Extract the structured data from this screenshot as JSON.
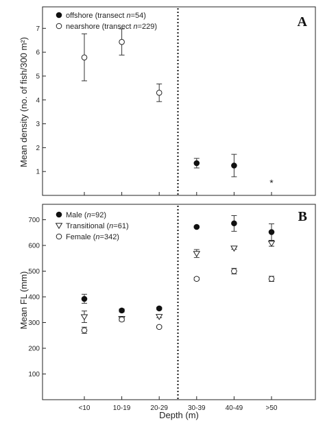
{
  "chart_data": [
    {
      "type": "scatter",
      "panel_label": "A",
      "ylabel": "Mean density (no. of fish/300 m²)",
      "ylim": [
        0,
        7.9
      ],
      "yticks": [
        1,
        2,
        3,
        4,
        5,
        6,
        7
      ],
      "categories": [
        "<10",
        "10-19",
        "20-29",
        "30-39",
        "40-49",
        ">50"
      ],
      "divider_after_category": 2,
      "legend_position": "top-left",
      "series": [
        {
          "name_parts": [
            "offshore (transect ",
            "n",
            "=54)"
          ],
          "marker": "filled-circle",
          "points": [
            {
              "x": "30-39",
              "y": 1.35,
              "err_low": 1.15,
              "err_high": 1.55
            },
            {
              "x": "40-49",
              "y": 1.25,
              "err_low": 0.78,
              "err_high": 1.72
            }
          ]
        },
        {
          "name_parts": [
            "nearshore (transect ",
            "n",
            "=229)"
          ],
          "marker": "open-circle",
          "points": [
            {
              "x": "<10",
              "y": 5.78,
              "err_low": 4.8,
              "err_high": 6.77
            },
            {
              "x": "10-19",
              "y": 6.43,
              "err_low": 5.88,
              "err_high": 6.98
            },
            {
              "x": "20-29",
              "y": 4.3,
              "err_low": 3.93,
              "err_high": 4.67
            }
          ]
        }
      ],
      "annotations": [
        {
          "text": "*",
          "x": ">50",
          "y": 0.62
        }
      ]
    },
    {
      "type": "scatter",
      "panel_label": "B",
      "xlabel": "Depth (m)",
      "ylabel": "Mean FL (mm)",
      "ylim": [
        0,
        760
      ],
      "yticks": [
        100,
        200,
        300,
        400,
        500,
        600,
        700
      ],
      "categories": [
        "<10",
        "10-19",
        "20-29",
        "30-39",
        "40-49",
        ">50"
      ],
      "divider_after_category": 2,
      "legend_position": "top-left",
      "series": [
        {
          "name_parts": [
            "Male (",
            "n",
            "=92)"
          ],
          "marker": "filled-circle",
          "points": [
            {
              "x": "<10",
              "y": 392,
              "err_low": 375,
              "err_high": 410
            },
            {
              "x": "10-19",
              "y": 347,
              "err_low": 341,
              "err_high": 353
            },
            {
              "x": "20-29",
              "y": 355,
              "err_low": 350,
              "err_high": 360
            },
            {
              "x": "30-39",
              "y": 672,
              "err_low": 668,
              "err_high": 676
            },
            {
              "x": "40-49",
              "y": 686,
              "err_low": 655,
              "err_high": 716
            },
            {
              "x": "40-49_offset",
              "y": 0,
              "err_low": 0,
              "err_high": 0
            },
            {
              "x": ">50",
              "y": 652,
              "err_low": 620,
              "err_high": 684
            }
          ]
        },
        {
          "name_parts": [
            "Transitional (",
            "n",
            "=61)"
          ],
          "marker": "open-triangle-down",
          "points": [
            {
              "x": "<10",
              "y": 322,
              "err_low": 300,
              "err_high": 345
            },
            {
              "x": "10-19",
              "y": 315,
              "err_low": 306,
              "err_high": 324
            },
            {
              "x": "20-29",
              "y": 323,
              "err_low": 319,
              "err_high": 328
            },
            {
              "x": "30-39",
              "y": 568,
              "err_low": 553,
              "err_high": 584
            },
            {
              "x": "40-49",
              "y": 589,
              "err_low": 585,
              "err_high": 593
            },
            {
              "x": ">50",
              "y": 608,
              "err_low": 597,
              "err_high": 619
            }
          ]
        },
        {
          "name_parts": [
            "Female (",
            "n",
            "=342)"
          ],
          "marker": "open-circle",
          "points": [
            {
              "x": "<10",
              "y": 270,
              "err_low": 258,
              "err_high": 282
            },
            {
              "x": "10-19",
              "y": 312,
              "err_low": 306,
              "err_high": 318
            },
            {
              "x": "20-29",
              "y": 283,
              "err_low": 279,
              "err_high": 287
            },
            {
              "x": "30-39",
              "y": 470,
              "err_low": 465,
              "err_high": 476
            },
            {
              "x": "40-49",
              "y": 500,
              "err_low": 489,
              "err_high": 511
            },
            {
              "x": ">50",
              "y": 470,
              "err_low": 460,
              "err_high": 480
            }
          ]
        }
      ]
    }
  ]
}
